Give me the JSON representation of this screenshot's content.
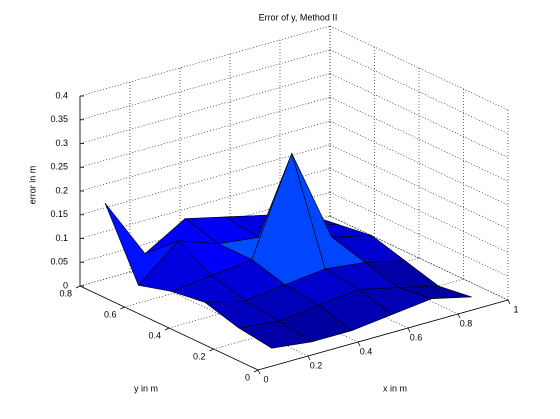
{
  "chart_data": {
    "type": "surface3d",
    "title": "Error of y, Method II",
    "xlabel": "x in m",
    "ylabel": "y in m",
    "zlabel": "error in m",
    "x": [
      0.1,
      0.26,
      0.42,
      0.58,
      0.74,
      0.9
    ],
    "y": [
      0.05,
      0.2,
      0.35,
      0.5,
      0.65,
      0.8
    ],
    "z": [
      [
        0.02,
        0.01,
        0.01,
        0.02,
        0.03,
        0.01
      ],
      [
        0.03,
        0.02,
        0.03,
        0.04,
        0.02,
        0.0
      ],
      [
        0.05,
        0.03,
        0.04,
        0.05,
        0.04,
        0.02
      ],
      [
        0.04,
        0.05,
        0.06,
        0.26,
        0.06,
        0.04
      ],
      [
        0.02,
        0.09,
        0.06,
        0.05,
        0.05,
        0.03
      ],
      [
        0.16,
        0.03,
        0.08,
        0.06,
        0.04,
        0.02
      ]
    ],
    "xlim": [
      0,
      1
    ],
    "ylim": [
      0,
      0.8
    ],
    "zlim": [
      0,
      0.4
    ],
    "xticks": [
      0,
      0.2,
      0.4,
      0.6,
      0.8,
      1
    ],
    "yticks": [
      0,
      0.2,
      0.4,
      0.6,
      0.8
    ],
    "zticks": [
      0,
      0.05,
      0.1,
      0.15,
      0.2,
      0.25,
      0.3,
      0.35,
      0.4
    ],
    "colormap": [
      "#000080",
      "#0000ff",
      "#0080ff",
      "#00ffff"
    ],
    "clim": [
      0,
      0.2
    ],
    "edge_color": "#000000",
    "grid": true
  }
}
